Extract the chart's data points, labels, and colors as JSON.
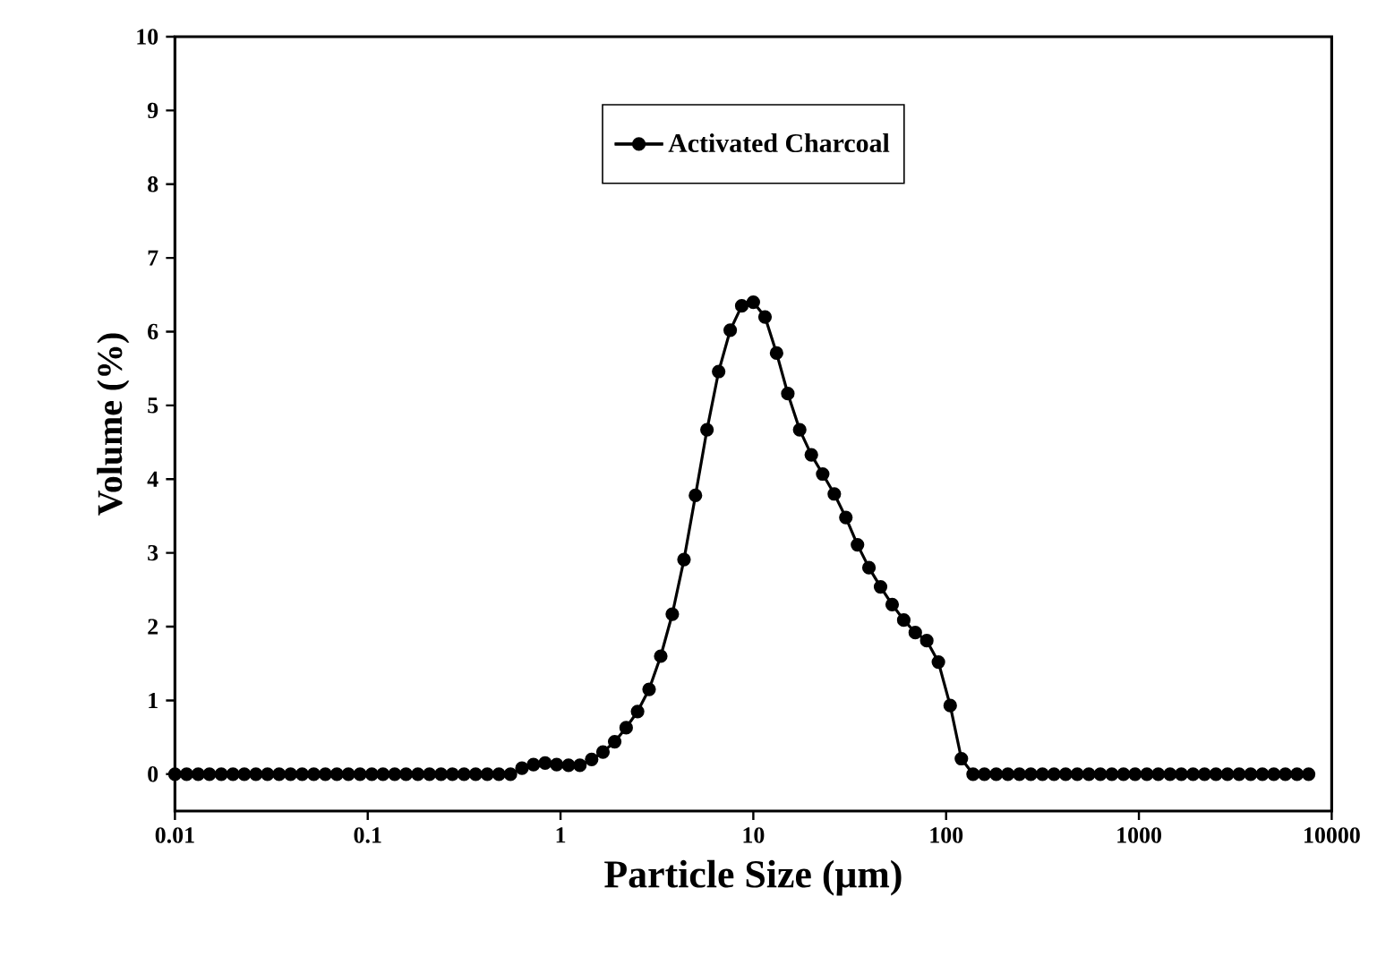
{
  "chart_data": {
    "type": "line",
    "xlabel": "Particle Size (μm)",
    "ylabel": "Volume (%)",
    "log": "x",
    "xlim": [
      0.01,
      10000
    ],
    "ylim": [
      -0.5,
      10
    ],
    "xticks": [
      0.01,
      0.1,
      1,
      10,
      100,
      1000,
      10000
    ],
    "yticks": [
      0,
      1,
      2,
      3,
      4,
      5,
      6,
      7,
      8,
      9,
      10
    ],
    "legend": "top",
    "marker": "circle",
    "line_style": "solid",
    "grid": false,
    "series": [
      {
        "name": "Activated Charcoal",
        "color": "#000000",
        "x": [
          0.01,
          0.0115,
          0.0132,
          0.0151,
          0.0174,
          0.02,
          0.0229,
          0.0263,
          0.0302,
          0.0347,
          0.0398,
          0.0457,
          0.0525,
          0.0603,
          0.0692,
          0.0794,
          0.0912,
          0.105,
          0.12,
          0.138,
          0.158,
          0.182,
          0.209,
          0.24,
          0.275,
          0.316,
          0.363,
          0.417,
          0.479,
          0.55,
          0.631,
          0.724,
          0.832,
          0.955,
          1.1,
          1.26,
          1.45,
          1.66,
          1.91,
          2.19,
          2.51,
          2.88,
          3.31,
          3.8,
          4.37,
          5.01,
          5.75,
          6.61,
          7.59,
          8.71,
          10,
          11.5,
          13.2,
          15.1,
          17.4,
          20,
          22.9,
          26.3,
          30.2,
          34.7,
          39.8,
          45.7,
          52.5,
          60.3,
          69.2,
          79.4,
          91.2,
          105,
          120,
          138,
          158,
          182,
          209,
          240,
          275,
          316,
          363,
          417,
          479,
          550,
          631,
          724,
          832,
          955,
          1100,
          1260,
          1450,
          1660,
          1910,
          2190,
          2510,
          2880,
          3310,
          3800,
          4370,
          5010,
          5750,
          6610,
          7590
        ],
        "values": [
          0,
          0,
          0,
          0,
          0,
          0,
          0,
          0,
          0,
          0,
          0,
          0,
          0,
          0,
          0,
          0,
          0,
          0,
          0,
          0,
          0,
          0,
          0,
          0,
          0,
          0,
          0,
          0,
          0,
          0,
          0.08,
          0.13,
          0.15,
          0.13,
          0.12,
          0.12,
          0.2,
          0.3,
          0.44,
          0.63,
          0.85,
          1.15,
          1.6,
          2.17,
          2.91,
          3.78,
          4.67,
          5.46,
          6.02,
          6.35,
          6.4,
          6.2,
          5.71,
          5.16,
          4.67,
          4.33,
          4.07,
          3.8,
          3.48,
          3.11,
          2.8,
          2.54,
          2.3,
          2.09,
          1.92,
          1.81,
          1.52,
          0.93,
          0.21,
          0,
          0,
          0,
          0,
          0,
          0,
          0,
          0,
          0,
          0,
          0,
          0,
          0,
          0,
          0,
          0,
          0,
          0,
          0,
          0,
          0,
          0,
          0,
          0,
          0,
          0,
          0,
          0,
          0,
          0
        ]
      }
    ]
  }
}
